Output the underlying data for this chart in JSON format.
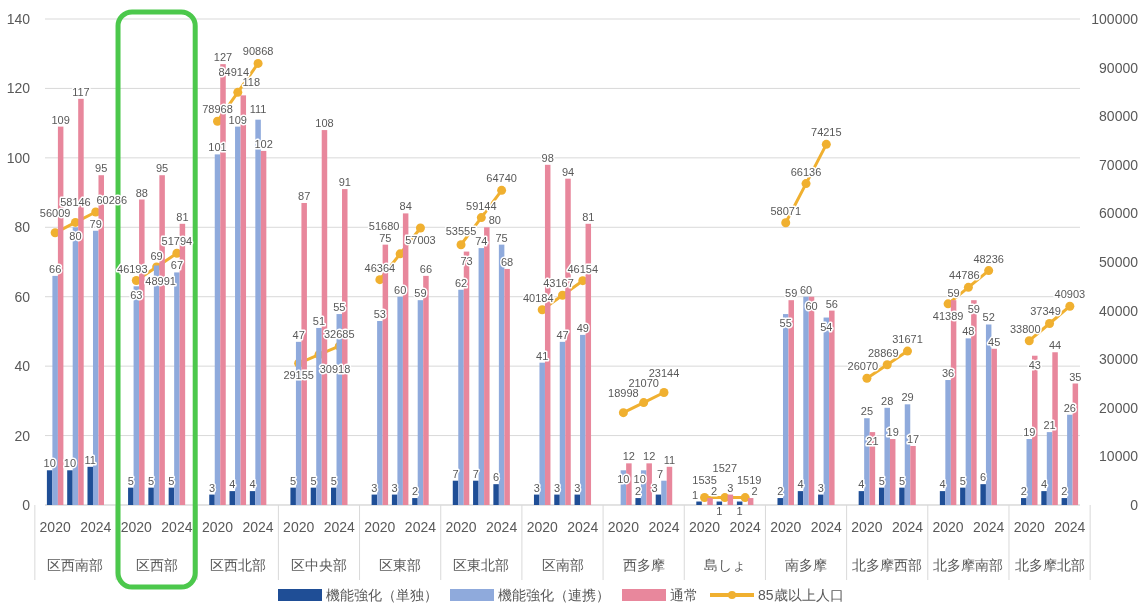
{
  "chart_data": {
    "type": "bar",
    "categories": [
      "2020",
      null,
      "2024",
      null,
      "2020",
      null,
      "2024",
      null,
      "2020",
      null,
      "2024",
      null,
      "2020",
      null,
      "2024",
      null,
      "2020",
      null,
      "2024",
      null,
      "2020",
      null,
      "2024",
      null,
      "2020",
      null,
      "2024",
      null,
      "2020",
      null,
      "2024",
      null,
      "2020",
      null,
      "2024",
      null,
      "2020",
      null,
      "2024",
      null,
      "2020",
      null,
      "2024",
      null,
      "2020",
      null,
      "2024",
      null,
      "2020",
      null,
      "2024"
    ],
    "series": [
      {
        "name": "機能強化（単独）",
        "color": "#1f4e96",
        "values": [
          10,
          10,
          11,
          null,
          5,
          5,
          5,
          null,
          3,
          4,
          4,
          null,
          5,
          5,
          5,
          null,
          3,
          3,
          2,
          null,
          7,
          7,
          6,
          null,
          3,
          3,
          3,
          null,
          null,
          2,
          3,
          null,
          1,
          1,
          1,
          null,
          2,
          4,
          3,
          null,
          4,
          5,
          5,
          null,
          4,
          5,
          6,
          null,
          2,
          4,
          2
        ]
      },
      {
        "name": "機能強化（連携）",
        "color": "#8faadc",
        "values": [
          66,
          80,
          79,
          null,
          63,
          69,
          67,
          null,
          101,
          109,
          111,
          null,
          47,
          51,
          55,
          null,
          53,
          60,
          59,
          null,
          62,
          74,
          75,
          null,
          41,
          47,
          49,
          null,
          10,
          10,
          7,
          null,
          null,
          null,
          null,
          null,
          55,
          60,
          54,
          null,
          25,
          28,
          29,
          null,
          36,
          48,
          52,
          null,
          19,
          21,
          26
        ]
      },
      {
        "name": "通常",
        "color": "#e8879c",
        "values": [
          109,
          117,
          95,
          null,
          88,
          95,
          81,
          null,
          127,
          118,
          102,
          null,
          87,
          108,
          91,
          null,
          75,
          84,
          66,
          null,
          73,
          80,
          68,
          null,
          98,
          94,
          81,
          null,
          12,
          12,
          11,
          null,
          2,
          3,
          2,
          null,
          59,
          60,
          56,
          null,
          21,
          19,
          17,
          null,
          59,
          59,
          45,
          null,
          43,
          44,
          35
        ]
      },
      {
        "name": "85歳以上人口",
        "type": "line",
        "axis": "y2",
        "color": "#f0b030",
        "values": [
          56009,
          58146,
          60286,
          null,
          46193,
          48991,
          51794,
          null,
          78968,
          84914,
          90868,
          null,
          29155,
          30918,
          32685,
          null,
          46364,
          51680,
          57003,
          null,
          53555,
          59144,
          64740,
          null,
          40184,
          43167,
          46154,
          null,
          18998,
          21070,
          23144,
          null,
          1535,
          1527,
          1519,
          null,
          58071,
          66136,
          74215,
          null,
          26070,
          28869,
          31671,
          null,
          41389,
          44786,
          48236,
          null,
          33800,
          37349,
          40903
        ]
      }
    ],
    "ylim": [
      0,
      140
    ],
    "yticks": [
      0,
      20,
      40,
      60,
      80,
      100,
      120,
      140
    ],
    "y2lim": [
      0,
      100000
    ],
    "y2ticks": [
      0,
      10000,
      20000,
      30000,
      40000,
      50000,
      60000,
      70000,
      80000,
      90000,
      100000
    ],
    "grid": "y",
    "legend": "bottom",
    "marker": "circle",
    "data_labels": true,
    "annotations": [
      "区西南部",
      "区西部",
      "区西北部",
      "区中央部",
      "区東部",
      "区東北部",
      "区南部",
      "西多摩",
      "島しょ",
      "南多摩",
      "北多摩西部",
      "北多摩南部",
      "北多摩北部"
    ]
  }
}
